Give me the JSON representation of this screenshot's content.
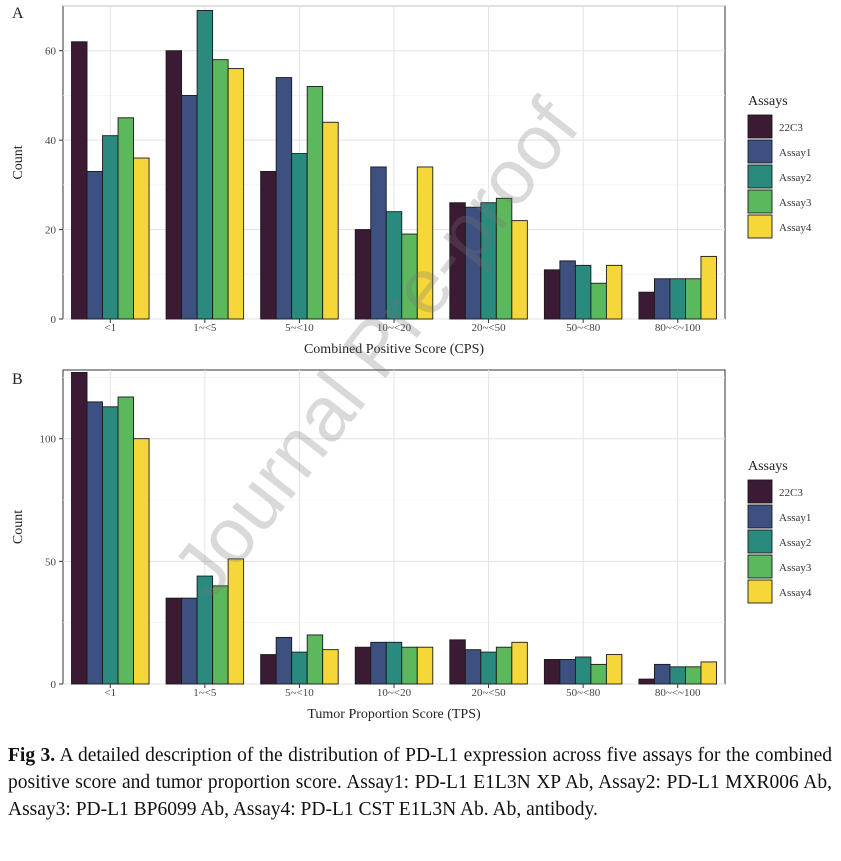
{
  "chart_data": [
    {
      "panel": "A",
      "type": "bar",
      "xlabel": "Combined Positive Score (CPS)",
      "ylabel": "Count",
      "ylim": [
        0,
        70
      ],
      "yticks": [
        0,
        20,
        40,
        60
      ],
      "grid": true,
      "legend_title": "Assays",
      "legend_position": "right",
      "categories": [
        "<1",
        "1~<5",
        "5~<10",
        "10~<20",
        "20~<50",
        "50~<80",
        "80~<~100"
      ],
      "series": [
        {
          "name": "22C3",
          "color": "#3b1a33",
          "values": [
            62,
            60,
            33,
            20,
            26,
            11,
            6
          ]
        },
        {
          "name": "Assay1",
          "color": "#3d5080",
          "values": [
            33,
            50,
            54,
            34,
            25,
            13,
            9
          ]
        },
        {
          "name": "Assay2",
          "color": "#2a8a7e",
          "values": [
            41,
            69,
            37,
            24,
            26,
            12,
            9
          ]
        },
        {
          "name": "Assay3",
          "color": "#5cb85c",
          "values": [
            45,
            58,
            52,
            19,
            27,
            8,
            9
          ]
        },
        {
          "name": "Assay4",
          "color": "#f5d73a",
          "values": [
            36,
            56,
            44,
            34,
            22,
            12,
            14
          ]
        }
      ]
    },
    {
      "panel": "B",
      "type": "bar",
      "xlabel": "Tumor Proportion Score (TPS)",
      "ylabel": "Count",
      "ylim": [
        0,
        128
      ],
      "yticks": [
        0,
        50,
        100
      ],
      "grid": true,
      "legend_title": "Assays",
      "legend_position": "right",
      "categories": [
        "<1",
        "1~<5",
        "5~<10",
        "10~<20",
        "20~<50",
        "50~<80",
        "80~<~100"
      ],
      "series": [
        {
          "name": "22C3",
          "color": "#3b1a33",
          "values": [
            127,
            35,
            12,
            15,
            18,
            10,
            2
          ]
        },
        {
          "name": "Assay1",
          "color": "#3d5080",
          "values": [
            115,
            35,
            19,
            17,
            14,
            10,
            8
          ]
        },
        {
          "name": "Assay2",
          "color": "#2a8a7e",
          "values": [
            113,
            44,
            13,
            17,
            13,
            11,
            7
          ]
        },
        {
          "name": "Assay3",
          "color": "#5cb85c",
          "values": [
            117,
            40,
            20,
            15,
            15,
            8,
            7
          ]
        },
        {
          "name": "Assay4",
          "color": "#f5d73a",
          "values": [
            100,
            51,
            14,
            15,
            17,
            12,
            9
          ]
        }
      ]
    }
  ],
  "caption": {
    "label": "Fig 3.",
    "text": "A detailed description of the distribution of PD-L1 expression across five assays for the combined positive score and tumor proportion score. Assay1: PD-L1 E1L3N XP Ab, Assay2: PD-L1 MXR006 Ab, Assay3: PD-L1 BP6099 Ab, Assay4: PD-L1 CST E1L3N Ab. Ab, antibody."
  },
  "watermark": "Journal Pre-proof"
}
